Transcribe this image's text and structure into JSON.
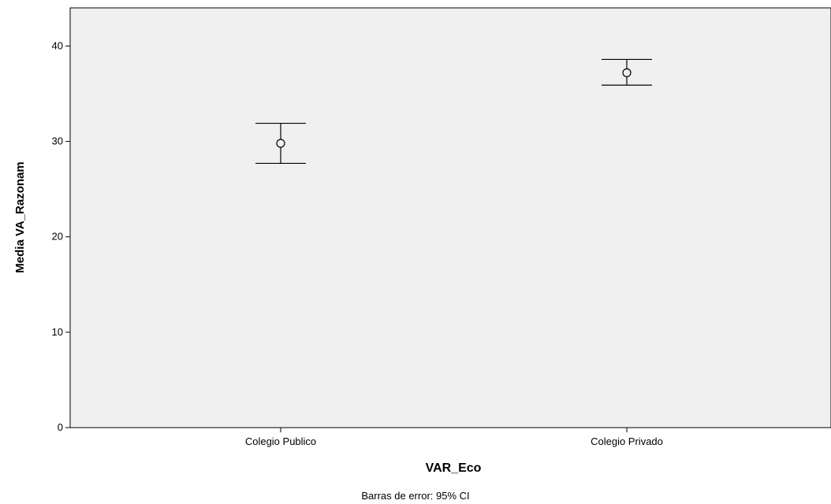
{
  "chart_data": {
    "type": "errorbar",
    "categories": [
      "Colegio Publico",
      "Colegio Privado"
    ],
    "means": [
      29.8,
      37.2
    ],
    "ci_lower": [
      27.7,
      35.9
    ],
    "ci_upper": [
      31.9,
      38.6
    ],
    "xlabel": "VAR_Eco",
    "ylabel": "Media VA_Razonam",
    "ylim": [
      0,
      44
    ],
    "yticks": [
      0,
      10,
      20,
      30,
      40
    ],
    "grid": false,
    "footnote": "Barras de error: 95% CI",
    "colors": {
      "plot_background": "#f0f0f0",
      "marks": "#000000"
    }
  }
}
